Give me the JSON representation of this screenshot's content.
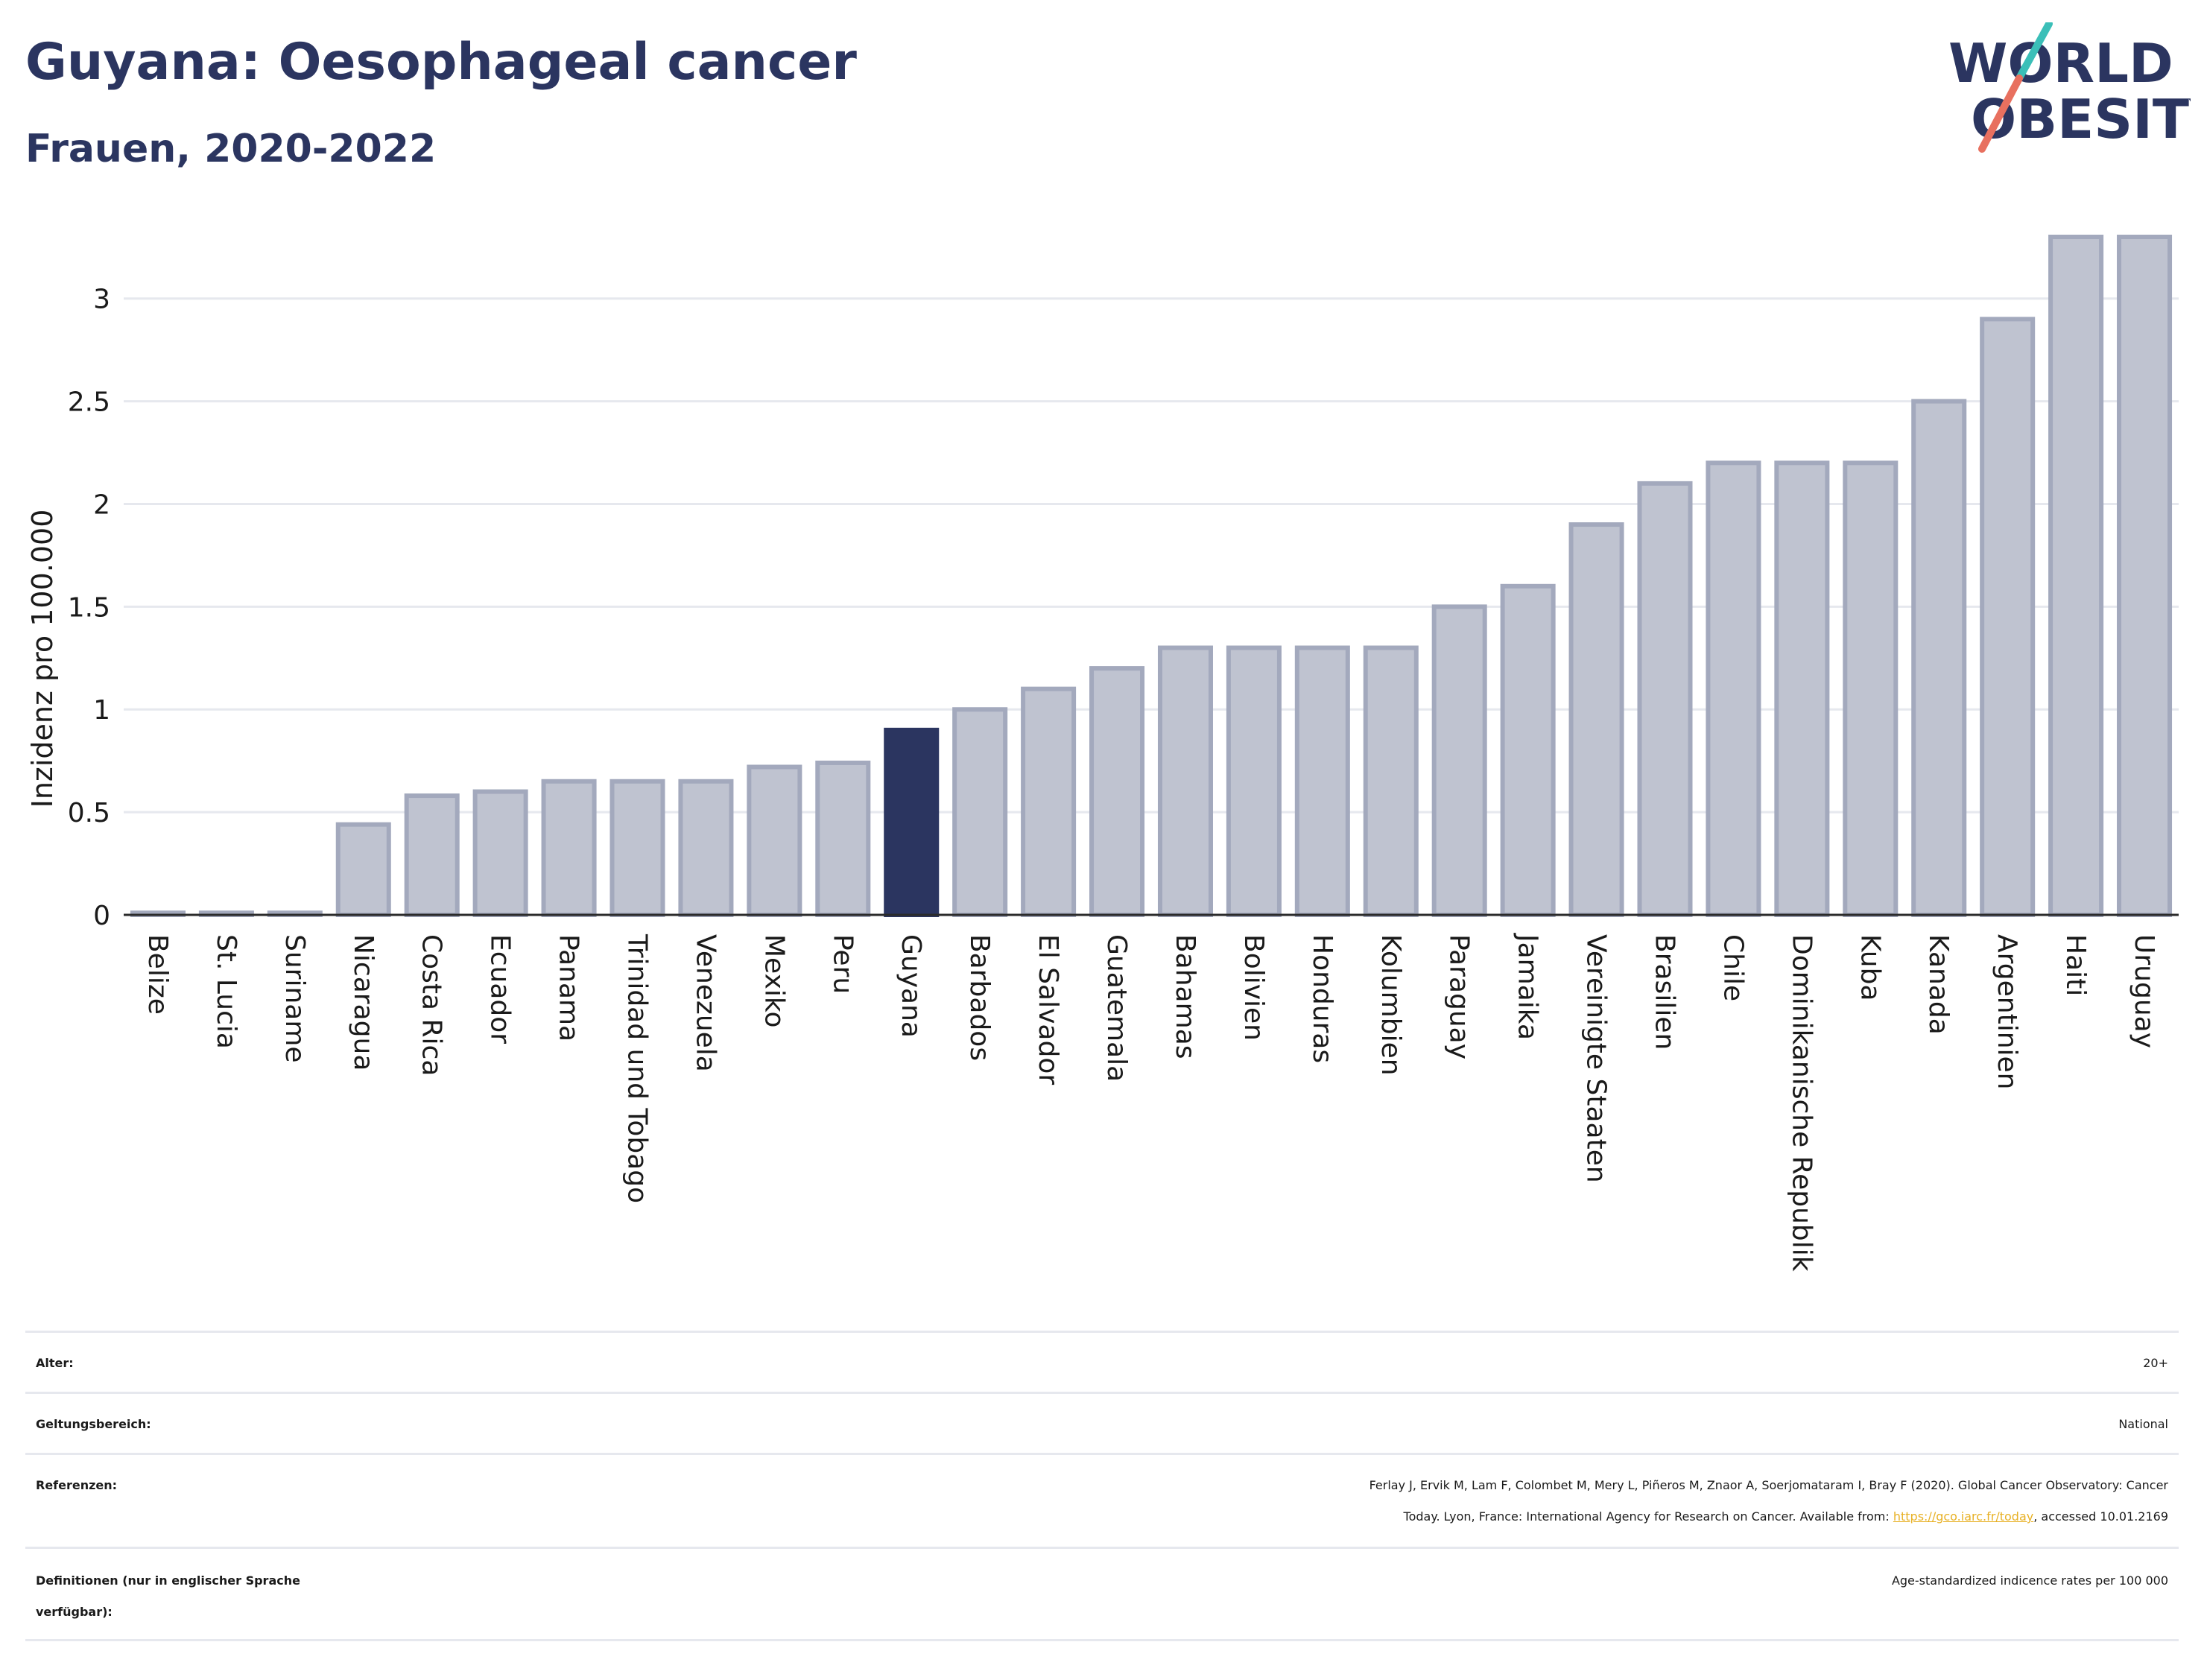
{
  "header": {
    "title": "Guyana: Oesophageal cancer",
    "subtitle": "Frauen, 2020-2022"
  },
  "logo": {
    "line1": "WORLD",
    "line2": "OBESITY",
    "text_color": "#2b3560",
    "accent_teal": "#3bbfb8",
    "accent_coral": "#e8705f"
  },
  "chart_data": {
    "type": "bar",
    "ylabel": "Inzidenz pro 100.000",
    "ylim": [
      0,
      3.3
    ],
    "yticks": [
      0,
      0.5,
      1,
      1.5,
      2,
      2.5,
      3
    ],
    "grid": true,
    "highlight": "Guyana",
    "bar_color": "#bfc3d0",
    "bar_edge_color": "#a3a9bd",
    "highlight_color": "#2b3560",
    "categories": [
      "Belize",
      "St. Lucia",
      "Suriname",
      "Nicaragua",
      "Costa Rica",
      "Ecuador",
      "Panama",
      "Trinidad und Tobago",
      "Venezuela",
      "Mexiko",
      "Peru",
      "Guyana",
      "Barbados",
      "El Salvador",
      "Guatemala",
      "Bahamas",
      "Bolivien",
      "Honduras",
      "Kolumbien",
      "Paraguay",
      "Jamaika",
      "Vereinigte Staaten",
      "Brasilien",
      "Chile",
      "Dominikanische Republik",
      "Kuba",
      "Kanada",
      "Argentinien",
      "Haiti",
      "Uruguay"
    ],
    "values": [
      0.01,
      0.01,
      0.01,
      0.44,
      0.58,
      0.6,
      0.65,
      0.65,
      0.65,
      0.72,
      0.74,
      0.9,
      1.0,
      1.1,
      1.2,
      1.3,
      1.3,
      1.3,
      1.3,
      1.5,
      1.6,
      1.9,
      2.1,
      2.2,
      2.2,
      2.2,
      2.5,
      2.9,
      3.3,
      3.3
    ]
  },
  "info": {
    "age_label": "Alter:",
    "age_value": "20+",
    "scope_label": "Geltungsbereich:",
    "scope_value": "National",
    "ref_label": "Referenzen:",
    "ref_line1": "Ferlay J, Ervik M, Lam F, Colombet M, Mery L, Piñeros M, Znaor A, Soerjomataram I, Bray F (2020). Global Cancer Observatory: Cancer",
    "ref_line2_pre": "Today. Lyon, France: International Agency for Research on Cancer. Available from: ",
    "ref_link": "https://gco.iarc.fr/today",
    "ref_line2_post": ", accessed 10.01.2169",
    "def_label_line1": "Definitionen (nur in englischer Sprache",
    "def_label_line2": "verfügbar):",
    "def_value": "Age-standardized indicence rates per 100 000"
  }
}
